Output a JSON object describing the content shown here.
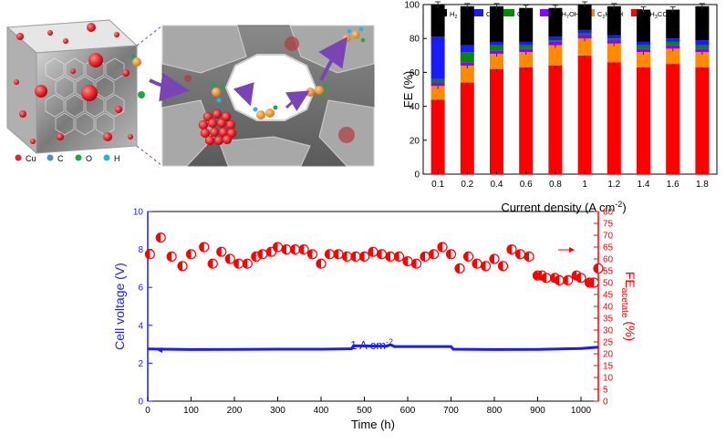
{
  "illustration": {
    "legend": [
      {
        "label": "Cu",
        "color": "#e8242a"
      },
      {
        "label": "C",
        "color": "#4f8fc9"
      },
      {
        "label": "O",
        "color": "#1fa64a"
      },
      {
        "label": "H",
        "color": "#24b4e6"
      }
    ],
    "colors": {
      "arrow": "#7b44b4",
      "copper": "#e8242a",
      "carbon": "#f08c1e"
    }
  },
  "chart_data": [
    {
      "type": "bar",
      "stacked": true,
      "categories": [
        "0.1",
        "0.2",
        "0.4",
        "0.6",
        "0.8",
        "1",
        "1.2",
        "1.4",
        "1.6",
        "1.8"
      ],
      "series": [
        {
          "name": "CH3COO-",
          "color": "#ff0000",
          "values": [
            44,
            54,
            62,
            63,
            64,
            70,
            66,
            63,
            65,
            63
          ]
        },
        {
          "name": "C2H5OH",
          "color": "#ff8a00",
          "values": [
            8,
            10,
            9,
            9,
            12,
            10,
            11,
            9,
            9,
            9
          ]
        },
        {
          "name": "C3H7OH",
          "color": "#8b00ff",
          "values": [
            2,
            2,
            2,
            2,
            2,
            2,
            2,
            2,
            2,
            2
          ]
        },
        {
          "name": "C2H4",
          "color": "#008a00",
          "values": [
            2,
            6,
            3,
            2,
            1,
            1,
            1,
            2,
            2,
            2
          ]
        },
        {
          "name": "CH4",
          "color": "#1a1aff",
          "values": [
            25,
            4,
            2,
            2,
            2,
            2,
            2,
            2,
            2,
            3
          ]
        },
        {
          "name": "H2",
          "color": "#000000",
          "values": [
            19,
            23,
            21,
            20,
            17,
            15,
            17,
            19,
            17,
            20
          ]
        }
      ],
      "legend_labels": [
        {
          "series": "H2",
          "text": "H",
          "sub": "2",
          "rest": ""
        },
        {
          "series": "CH4",
          "text": "CH",
          "sub": "4",
          "rest": ""
        },
        {
          "series": "C2H4",
          "text": "C",
          "sub": "2",
          "rest": "H",
          "sub2": "4"
        },
        {
          "series": "C3H7OH",
          "text": "C",
          "sub": "3",
          "rest": "H",
          "sub2": "7",
          "rest2": "OH"
        },
        {
          "series": "C2H5OH",
          "text": "C",
          "sub": "2",
          "rest": "H",
          "sub2": "5",
          "rest2": "OH"
        },
        {
          "series": "CH3COO-",
          "text": "CH",
          "sub": "3",
          "rest": "COO",
          "sup": "-"
        }
      ],
      "ylabel": "FE (%)",
      "xlabel_main": "Current density (A cm",
      "xlabel_sup": "-2",
      "xlabel_end": ")",
      "ylim": [
        0,
        100
      ],
      "yticks": [
        "0",
        "20",
        "40",
        "60",
        "80",
        "100"
      ],
      "legend_position": "top",
      "grid": false
    },
    {
      "type": "scatter",
      "x_label": "Time (h)",
      "xlim": [
        0,
        1040
      ],
      "xticks": [
        "0",
        "100",
        "200",
        "300",
        "400",
        "500",
        "600",
        "700",
        "800",
        "900",
        "1000"
      ],
      "y_left_label": "Cell voltage (V)",
      "y_left_lim": [
        0,
        10
      ],
      "y_left_ticks": [
        "0",
        "2",
        "4",
        "6",
        "8",
        "10"
      ],
      "y_right_label_main": "FE",
      "y_right_label_sub": "acetate",
      "y_right_label_end": " (%)",
      "y_right_lim": [
        0,
        80
      ],
      "y_right_ticks": [
        "0",
        "5",
        "10",
        "15",
        "20",
        "25",
        "30",
        "35",
        "40",
        "45",
        "50",
        "55",
        "60",
        "65",
        "70",
        "75",
        "80"
      ],
      "annotation_main": "1 A cm",
      "annotation_sup": "-2",
      "voltage_color": "#1a1aff",
      "fe_color": "#ff0000",
      "voltage": {
        "x": [
          0,
          100,
          200,
          300,
          400,
          470,
          475,
          550,
          560,
          570,
          700,
          705,
          800,
          900,
          1000,
          1040
        ],
        "y": [
          2.75,
          2.72,
          2.73,
          2.74,
          2.74,
          2.76,
          2.92,
          2.9,
          2.97,
          2.88,
          2.88,
          2.74,
          2.72,
          2.73,
          2.78,
          2.85
        ]
      },
      "fe_acetate": {
        "x": [
          5,
          30,
          55,
          80,
          100,
          130,
          150,
          170,
          190,
          210,
          230,
          250,
          265,
          285,
          300,
          320,
          340,
          360,
          380,
          400,
          420,
          440,
          460,
          480,
          500,
          520,
          540,
          560,
          580,
          600,
          620,
          640,
          660,
          680,
          700,
          720,
          740,
          760,
          780,
          800,
          820,
          840,
          860,
          880,
          900,
          910,
          920,
          940,
          950,
          970,
          990,
          1000,
          1020,
          1030,
          1040
        ],
        "y": [
          62,
          69,
          61,
          57,
          62,
          65,
          58,
          63,
          60,
          58,
          58,
          61,
          62,
          63,
          65,
          64,
          64,
          64,
          62,
          58,
          62,
          62,
          61,
          61,
          61,
          63,
          62,
          61,
          61,
          59,
          58,
          61,
          62,
          65,
          62,
          56,
          61,
          58,
          57,
          60,
          57,
          64,
          62,
          61,
          53,
          53,
          52,
          52,
          51,
          51,
          53,
          52,
          50,
          50,
          56
        ]
      }
    }
  ]
}
